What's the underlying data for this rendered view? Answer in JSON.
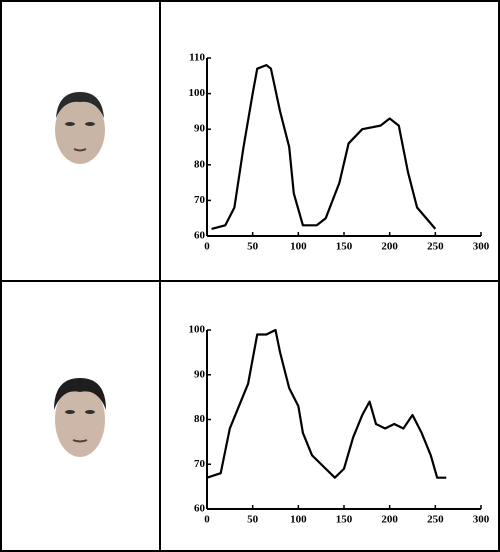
{
  "chart_data": [
    {
      "type": "line",
      "x": [
        5,
        20,
        30,
        40,
        50,
        55,
        65,
        70,
        80,
        90,
        95,
        105,
        120,
        130,
        145,
        155,
        170,
        190,
        200,
        210,
        220,
        230,
        250
      ],
      "values": [
        62,
        63,
        68,
        85,
        100,
        107,
        108,
        107,
        95,
        85,
        72,
        63,
        63,
        65,
        75,
        86,
        90,
        91,
        93,
        91,
        78,
        68,
        62
      ],
      "color": "#000000",
      "xlim": [
        0,
        300
      ],
      "xticks": [
        0,
        50,
        100,
        150,
        200,
        250,
        300
      ],
      "ylim": [
        60,
        110
      ],
      "yticks": [
        60,
        70,
        80,
        90,
        100,
        110
      ]
    },
    {
      "type": "line",
      "x": [
        0,
        15,
        25,
        35,
        45,
        55,
        65,
        75,
        80,
        90,
        100,
        105,
        115,
        130,
        140,
        150,
        160,
        170,
        178,
        185,
        195,
        205,
        215,
        225,
        235,
        245,
        252,
        262
      ],
      "values": [
        67,
        68,
        78,
        83,
        88,
        99,
        99,
        100,
        95,
        87,
        83,
        77,
        72,
        69,
        67,
        69,
        76,
        81,
        84,
        79,
        78,
        79,
        78,
        81,
        77,
        72,
        67,
        67
      ],
      "color": "#000000",
      "xlim": [
        0,
        300
      ],
      "xticks": [
        0,
        50,
        100,
        150,
        200,
        250,
        300
      ],
      "ylim": [
        60,
        100
      ],
      "yticks": [
        60,
        70,
        80,
        90,
        100
      ]
    }
  ]
}
